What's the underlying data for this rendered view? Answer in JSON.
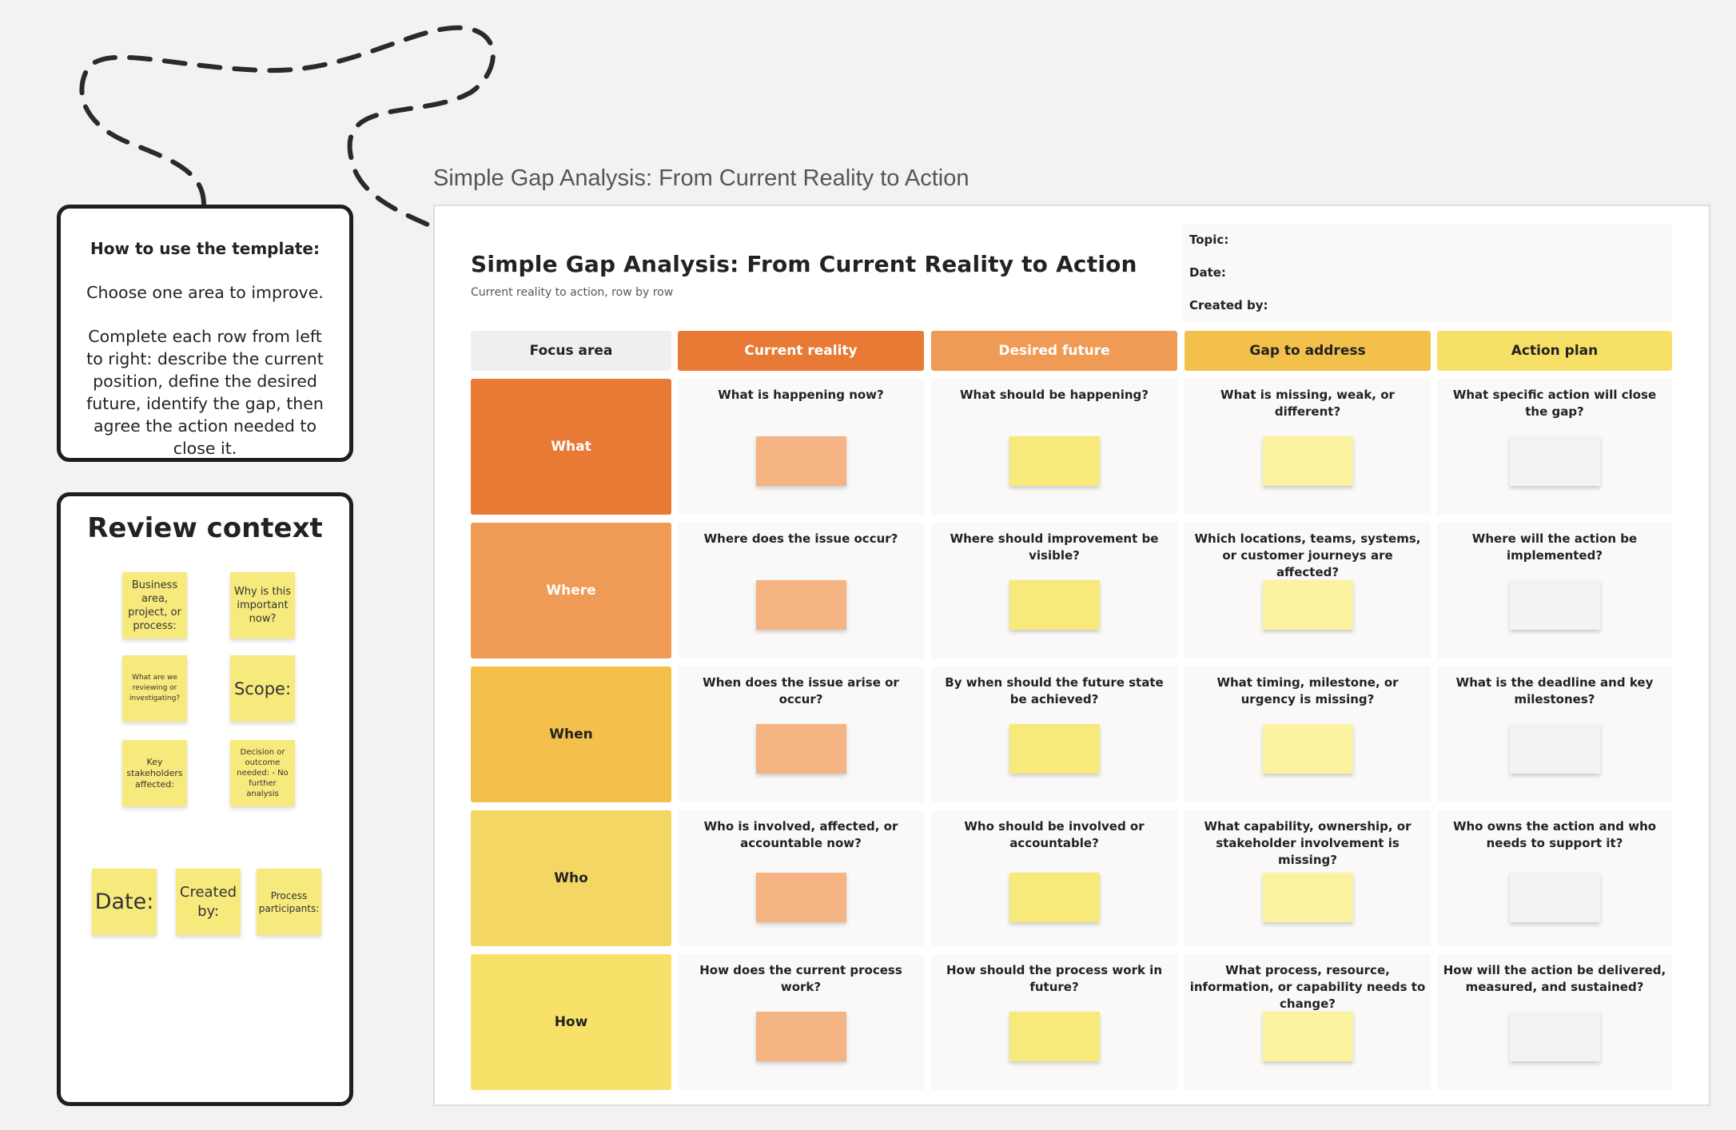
{
  "howto": {
    "title": "How to use the template:",
    "p1": "Choose one area to improve.",
    "p2": "Complete each row from left to right: describe the current position, define the desired future, identify the gap, then agree the action needed to close it."
  },
  "review": {
    "title": "Review context",
    "stickies": [
      "Business area, project, or process:",
      "Why is this important now?",
      "What are we reviewing or investigating?",
      "Scope:",
      "Key stakeholders affected:",
      "Decision or outcome needed: - No further analysis",
      "Date:",
      "Created by:",
      "Process participants:"
    ]
  },
  "frame": {
    "label": "Simple Gap Analysis: From Current Reality to Action",
    "title": "Simple Gap Analysis: From Current Reality to Action",
    "subtitle": "Current reality to action, row by row",
    "meta": {
      "topic": "Topic:",
      "date": "Date:",
      "created_by": "Created by:"
    }
  },
  "columns": [
    {
      "label": "Focus area",
      "color": "#efefef",
      "text_color": "#222222"
    },
    {
      "label": "Current reality",
      "color": "#e87a35",
      "note_color": "#f4b483"
    },
    {
      "label": "Desired future",
      "color": "#ef9b55",
      "note_color": "#f7e97a"
    },
    {
      "label": "Gap to address",
      "color": "#f2c04b",
      "note_color": "#fbf3a0"
    },
    {
      "label": "Action plan",
      "color": "#f7e066",
      "note_color": "#f1f3f5"
    }
  ],
  "rows": [
    {
      "label": "What",
      "color": "#e87a35",
      "text_color": "#ffffff",
      "questions": [
        "What is happening now?",
        "What should be happening?",
        "What is missing, weak, or different?",
        "What specific action will close the gap?"
      ]
    },
    {
      "label": "Where",
      "color": "#ef9b55",
      "text_color": "#ffffff",
      "questions": [
        "Where does the issue occur?",
        "Where should improvement be visible?",
        "Which locations, teams, systems, or customer journeys are affected?",
        "Where will the action be implemented?"
      ]
    },
    {
      "label": "When",
      "color": "#f2c04b",
      "text_color": "#222222",
      "questions": [
        "When does the issue arise or occur?",
        "By when should the future state be achieved?",
        "What timing, milestone, or urgency is missing?",
        "What is the deadline and key milestones?"
      ]
    },
    {
      "label": "Who",
      "color": "#f4d665",
      "text_color": "#222222",
      "questions": [
        "Who is involved, affected, or accountable now?",
        "Who should be involved or accountable?",
        "What capability, ownership, or stakeholder involvement is missing?",
        "Who owns the action and who needs to support it?"
      ]
    },
    {
      "label": "How",
      "color": "#f8e168",
      "text_color": "#222222",
      "questions": [
        "How does the current process work?",
        "How should the process work in future?",
        "What process, resource, information, or capability needs to change?",
        "How will the action be delivered, measured, and sustained?"
      ]
    }
  ]
}
